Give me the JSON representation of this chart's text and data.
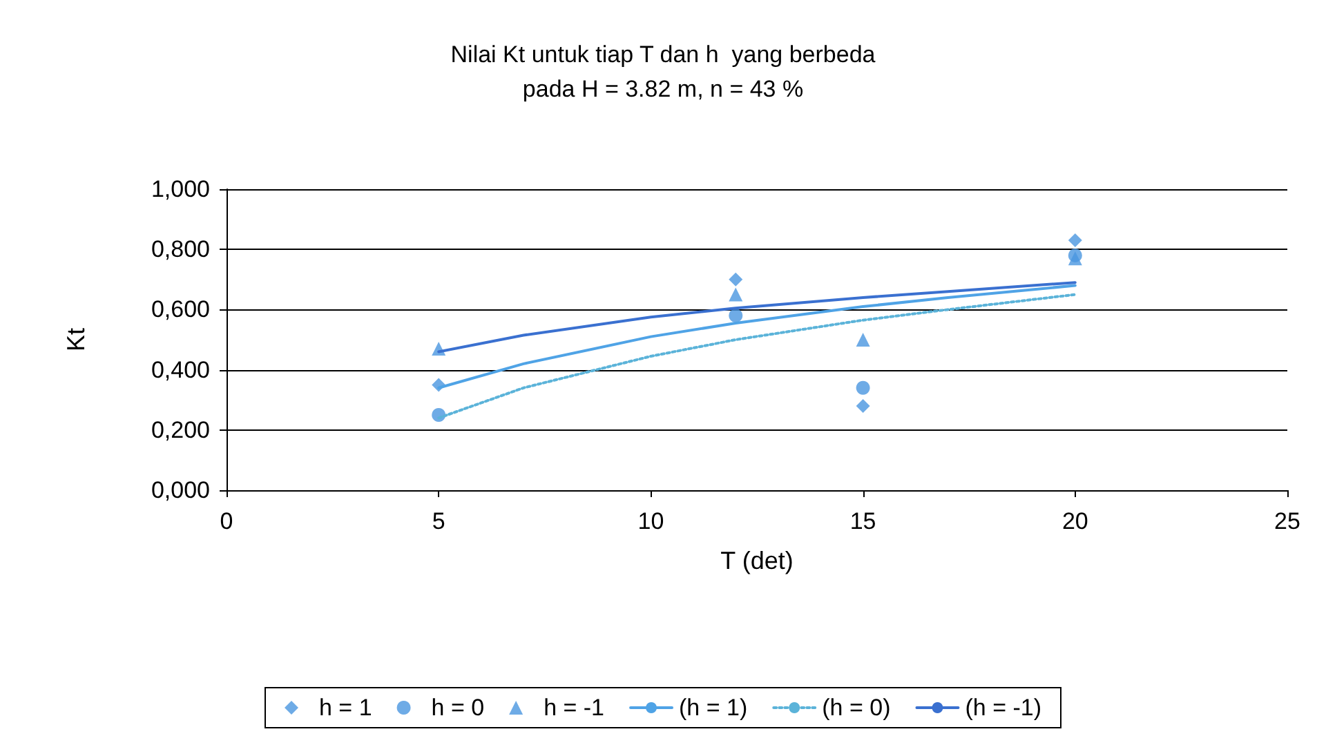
{
  "chart_data": {
    "type": "scatter",
    "title": "Nilai Kt untuk tiap T dan h  yang berbeda",
    "subtitle": "pada H = 3.82 m, n = 43 %",
    "xlabel": "T (det)",
    "ylabel": "Kt",
    "x": [
      5,
      12,
      15,
      20
    ],
    "series": [
      {
        "name": "h = 1",
        "color": "#4a96e0",
        "marker": "diamond",
        "values": [
          0.35,
          0.7,
          0.28,
          0.83
        ]
      },
      {
        "name": "h = 0",
        "color": "#4a96e0",
        "marker": "circle",
        "values": [
          0.25,
          0.58,
          0.34,
          0.78
        ]
      },
      {
        "name": "h = -1",
        "color": "#4a96e0",
        "marker": "triangle",
        "values": [
          0.47,
          0.65,
          0.5,
          0.77
        ]
      },
      {
        "name": "(h = 1)",
        "type": "line",
        "color": "#4fa3e6",
        "line_style": "solid",
        "marker": "none",
        "x": [
          5,
          7,
          10,
          12,
          15,
          17,
          20
        ],
        "values": [
          0.34,
          0.42,
          0.51,
          0.555,
          0.61,
          0.64,
          0.68
        ]
      },
      {
        "name": "(h = 0)",
        "type": "line",
        "color": "#5bb3d9",
        "line_style": "dotted",
        "marker": "none",
        "x": [
          5,
          7,
          10,
          12,
          15,
          17,
          20
        ],
        "values": [
          0.24,
          0.34,
          0.445,
          0.5,
          0.565,
          0.6,
          0.65
        ]
      },
      {
        "name": "(h = -1)",
        "type": "line",
        "color": "#3a70d0",
        "line_style": "solid",
        "marker": "none",
        "x": [
          5,
          7,
          10,
          12,
          15,
          17,
          20
        ],
        "values": [
          0.46,
          0.515,
          0.575,
          0.605,
          0.64,
          0.66,
          0.69
        ]
      }
    ],
    "xlim": [
      0,
      25
    ],
    "xticks": [
      0,
      5,
      10,
      15,
      20,
      25
    ],
    "ylim": [
      0,
      1
    ],
    "yticks": [
      {
        "value": 0,
        "label": "0,000"
      },
      {
        "value": 0.2,
        "label": "0,200"
      },
      {
        "value": 0.4,
        "label": "0,400"
      },
      {
        "value": 0.6,
        "label": "0,600"
      },
      {
        "value": 0.8,
        "label": "0,800"
      },
      {
        "value": 1,
        "label": "1,000"
      }
    ],
    "grid": "y",
    "legend": "bottom"
  }
}
